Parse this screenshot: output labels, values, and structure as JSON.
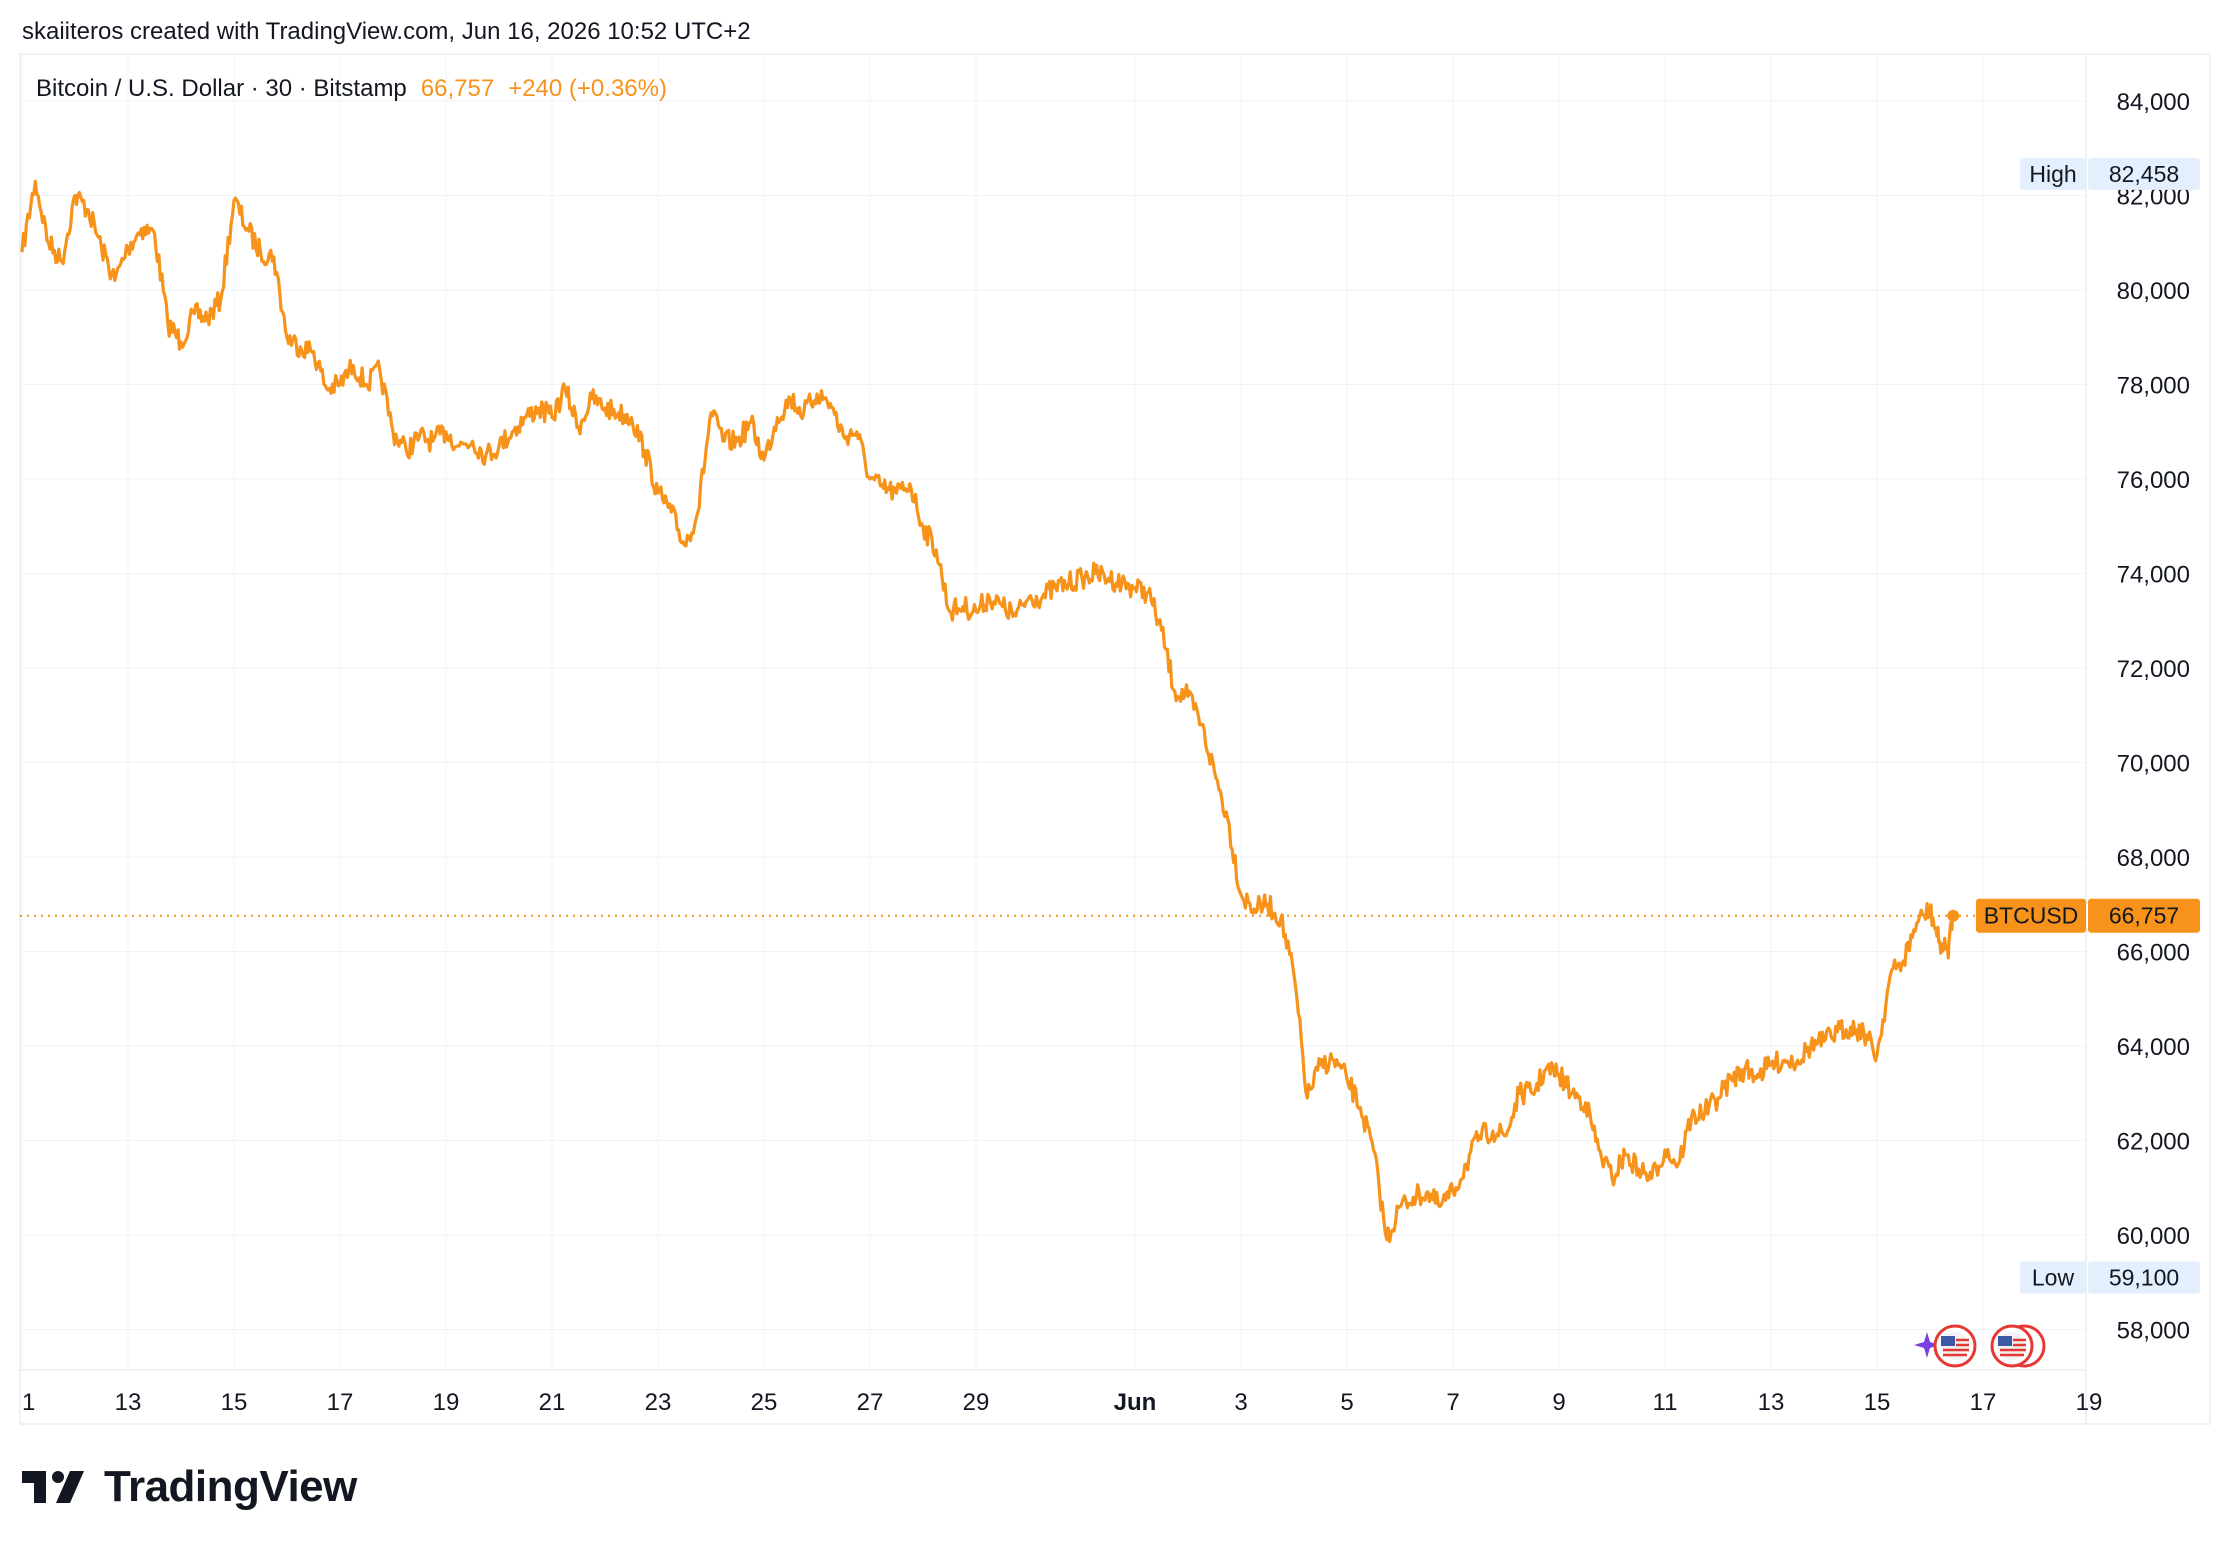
{
  "header": {
    "attribution": "skaiiteros created with TradingView.com, Jun 16, 2026 10:52 UTC+2"
  },
  "legend": {
    "symbol": "Bitcoin / U.S. Dollar · 30 · Bitstamp",
    "last": "66,757",
    "change": "+240 (+0.36%)"
  },
  "price_scale": {
    "labels": [
      "84,000",
      "82,000",
      "80,000",
      "78,000",
      "76,000",
      "74,000",
      "72,000",
      "70,000",
      "68,000",
      "66,000",
      "64,000",
      "62,000",
      "60,000",
      "58,000"
    ],
    "high": {
      "label": "High",
      "value": "82,458"
    },
    "low": {
      "label": "Low",
      "value": "59,100"
    },
    "current": {
      "label": "BTCUSD",
      "value": "66,757"
    }
  },
  "time_scale": {
    "labels": [
      "1",
      "13",
      "15",
      "17",
      "19",
      "21",
      "23",
      "25",
      "27",
      "29",
      "Jun",
      "3",
      "5",
      "7",
      "9",
      "11",
      "13",
      "15",
      "17",
      "19"
    ]
  },
  "logo": {
    "text": "TradingView"
  },
  "colors": {
    "line": "#f7931a",
    "grid": "#f0f3fa",
    "text": "#131722",
    "badge_bg": "#e3effd"
  },
  "chart_data": {
    "type": "line",
    "title": "Bitcoin / U.S. Dollar · 30 · Bitstamp",
    "xlabel": "",
    "ylabel": "",
    "ylim": [
      57000,
      85000
    ],
    "grid": true,
    "series": [
      {
        "name": "BTCUSD",
        "points": [
          [
            "May 11 00:00",
            80800
          ],
          [
            "May 11 06:00",
            82300
          ],
          [
            "May 11 12:00",
            81000
          ],
          [
            "May 11 18:00",
            80600
          ],
          [
            "May 12 00:00",
            82000
          ],
          [
            "May 12 06:00",
            81700
          ],
          [
            "May 12 12:00",
            80900
          ],
          [
            "May 12 18:00",
            80200
          ],
          [
            "May 13 00:00",
            80900
          ],
          [
            "May 13 06:00",
            81300
          ],
          [
            "May 13 12:00",
            81200
          ],
          [
            "May 13 18:00",
            79300
          ],
          [
            "May 14 00:00",
            78900
          ],
          [
            "May 14 06:00",
            79500
          ],
          [
            "May 14 12:00",
            79400
          ],
          [
            "May 14 18:00",
            79800
          ],
          [
            "May 15 00:00",
            81900
          ],
          [
            "May 15 06:00",
            81300
          ],
          [
            "May 15 12:00",
            80800
          ],
          [
            "May 15 18:00",
            80700
          ],
          [
            "May 16 00:00",
            79000
          ],
          [
            "May 16 06:00",
            78800
          ],
          [
            "May 16 12:00",
            78700
          ],
          [
            "May 16 18:00",
            77900
          ],
          [
            "May 17 00:00",
            78000
          ],
          [
            "May 17 06:00",
            78400
          ],
          [
            "May 17 12:00",
            78000
          ],
          [
            "May 17 18:00",
            78300
          ],
          [
            "May 18 00:00",
            77000
          ],
          [
            "May 18 06:00",
            76600
          ],
          [
            "May 18 12:00",
            76900
          ],
          [
            "May 18 18:00",
            76800
          ],
          [
            "May 19 00:00",
            77000
          ],
          [
            "May 19 06:00",
            76700
          ],
          [
            "May 19 12:00",
            76800
          ],
          [
            "May 19 18:00",
            76500
          ],
          [
            "May 20 00:00",
            76700
          ],
          [
            "May 20 06:00",
            77000
          ],
          [
            "May 20 12:00",
            77300
          ],
          [
            "May 20 18:00",
            77500
          ],
          [
            "May 21 00:00",
            77300
          ],
          [
            "May 21 06:00",
            77900
          ],
          [
            "May 21 12:00",
            77100
          ],
          [
            "May 21 18:00",
            77700
          ],
          [
            "May 22 00:00",
            77500
          ],
          [
            "May 22 06:00",
            77400
          ],
          [
            "May 22 12:00",
            77300
          ],
          [
            "May 22 18:00",
            76600
          ],
          [
            "May 23 00:00",
            75700
          ],
          [
            "May 23 06:00",
            75300
          ],
          [
            "May 23 12:00",
            74600
          ],
          [
            "May 23 18:00",
            75300
          ],
          [
            "May 24 00:00",
            77400
          ],
          [
            "May 24 06:00",
            76800
          ],
          [
            "May 24 12:00",
            76800
          ],
          [
            "May 24 18:00",
            77200
          ],
          [
            "May 25 00:00",
            76400
          ],
          [
            "May 25 06:00",
            77300
          ],
          [
            "May 25 12:00",
            77700
          ],
          [
            "May 25 18:00",
            77400
          ],
          [
            "May 26 00:00",
            77800
          ],
          [
            "May 26 06:00",
            77600
          ],
          [
            "May 26 12:00",
            76900
          ],
          [
            "May 26 18:00",
            77000
          ],
          [
            "May 27 00:00",
            76000
          ],
          [
            "May 27 06:00",
            75800
          ],
          [
            "May 27 12:00",
            75700
          ],
          [
            "May 27 18:00",
            75900
          ],
          [
            "May 28 00:00",
            75000
          ],
          [
            "May 28 06:00",
            74500
          ],
          [
            "May 28 12:00",
            73200
          ],
          [
            "May 28 18:00",
            73300
          ],
          [
            "May 29 00:00",
            73200
          ],
          [
            "May 29 06:00",
            73500
          ],
          [
            "May 29 12:00",
            73300
          ],
          [
            "May 29 18:00",
            73100
          ],
          [
            "May 30 00:00",
            73500
          ],
          [
            "May 30 06:00",
            73500
          ],
          [
            "May 30 12:00",
            73700
          ],
          [
            "May 30 18:00",
            73800
          ],
          [
            "May 31 00:00",
            73900
          ],
          [
            "May 31 06:00",
            74000
          ],
          [
            "May 31 12:00",
            73900
          ],
          [
            "May 31 18:00",
            73800
          ],
          [
            "Jun 1 00:00",
            73700
          ],
          [
            "Jun 1 06:00",
            73600
          ],
          [
            "Jun 1 12:00",
            72800
          ],
          [
            "Jun 1 18:00",
            71500
          ],
          [
            "Jun 2 00:00",
            71400
          ],
          [
            "Jun 2 06:00",
            70800
          ],
          [
            "Jun 2 12:00",
            69800
          ],
          [
            "Jun 2 18:00",
            68800
          ],
          [
            "Jun 3 00:00",
            67200
          ],
          [
            "Jun 3 06:00",
            66900
          ],
          [
            "Jun 3 12:00",
            67000
          ],
          [
            "Jun 3 18:00",
            66700
          ],
          [
            "Jun 4 00:00",
            65500
          ],
          [
            "Jun 4 06:00",
            62900
          ],
          [
            "Jun 4 12:00",
            63600
          ],
          [
            "Jun 4 18:00",
            63700
          ],
          [
            "Jun 5 00:00",
            63300
          ],
          [
            "Jun 5 06:00",
            62700
          ],
          [
            "Jun 5 12:00",
            61800
          ],
          [
            "Jun 5 18:00",
            59900
          ],
          [
            "Jun 6 00:00",
            60600
          ],
          [
            "Jun 6 06:00",
            60800
          ],
          [
            "Jun 6 12:00",
            60900
          ],
          [
            "Jun 6 18:00",
            60600
          ],
          [
            "Jun 7 00:00",
            60900
          ],
          [
            "Jun 7 06:00",
            61500
          ],
          [
            "Jun 7 12:00",
            62100
          ],
          [
            "Jun 7 18:00",
            62200
          ],
          [
            "Jun 8 00:00",
            62100
          ],
          [
            "Jun 8 06:00",
            63000
          ],
          [
            "Jun 8 12:00",
            63000
          ],
          [
            "Jun 8 18:00",
            63500
          ],
          [
            "Jun 9 00:00",
            63400
          ],
          [
            "Jun 9 06:00",
            63000
          ],
          [
            "Jun 9 12:00",
            62800
          ],
          [
            "Jun 9 18:00",
            61800
          ],
          [
            "Jun 10 00:00",
            61200
          ],
          [
            "Jun 10 06:00",
            61700
          ],
          [
            "Jun 10 12:00",
            61400
          ],
          [
            "Jun 10 18:00",
            61200
          ],
          [
            "Jun 11 00:00",
            61800
          ],
          [
            "Jun 11 06:00",
            61500
          ],
          [
            "Jun 11 12:00",
            62500
          ],
          [
            "Jun 11 18:00",
            62600
          ],
          [
            "Jun 12 00:00",
            62900
          ],
          [
            "Jun 12 06:00",
            63300
          ],
          [
            "Jun 12 12:00",
            63500
          ],
          [
            "Jun 12 18:00",
            63400
          ],
          [
            "Jun 13 00:00",
            63600
          ],
          [
            "Jun 13 06:00",
            63700
          ],
          [
            "Jun 13 12:00",
            63700
          ],
          [
            "Jun 13 18:00",
            64000
          ],
          [
            "Jun 14 00:00",
            64100
          ],
          [
            "Jun 14 06:00",
            64300
          ],
          [
            "Jun 14 12:00",
            64400
          ],
          [
            "Jun 14 18:00",
            64300
          ],
          [
            "Jun 15 00:00",
            63800
          ],
          [
            "Jun 15 06:00",
            65500
          ],
          [
            "Jun 15 12:00",
            65800
          ],
          [
            "Jun 15 18:00",
            66600
          ],
          [
            "Jun 16 00:00",
            66900
          ],
          [
            "Jun 16 04:00",
            66200
          ],
          [
            "Jun 16 08:00",
            66000
          ],
          [
            "Jun 16 10:30",
            66757
          ]
        ]
      }
    ],
    "high": 82458,
    "low": 59100,
    "last": 66757
  }
}
